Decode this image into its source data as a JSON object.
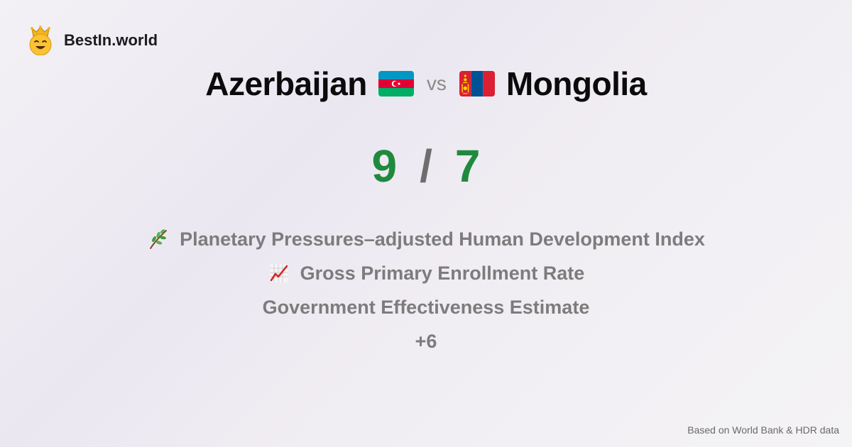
{
  "brand": {
    "name": "BestIn.world",
    "logo_icon": "crown-smiley-icon"
  },
  "comparison": {
    "country_a": {
      "name": "Azerbaijan",
      "flag_icon": "azerbaijan-flag-icon"
    },
    "vs_label": "vs",
    "country_b": {
      "name": "Mongolia",
      "flag_icon": "mongolia-flag-icon"
    }
  },
  "score": {
    "a": "9",
    "separator": "/",
    "b": "7",
    "color": "#1f8a3d"
  },
  "metrics": [
    {
      "label": "Planetary Pressures–adjusted Human Development Index",
      "icon": "herb-icon"
    },
    {
      "label": "Gross Primary Enrollment Rate",
      "icon": "chart-increasing-icon"
    },
    {
      "label": "Government Effectiveness Estimate",
      "icon": ""
    }
  ],
  "more_label": "+6",
  "footer": {
    "source": "Based on World Bank & HDR data"
  }
}
